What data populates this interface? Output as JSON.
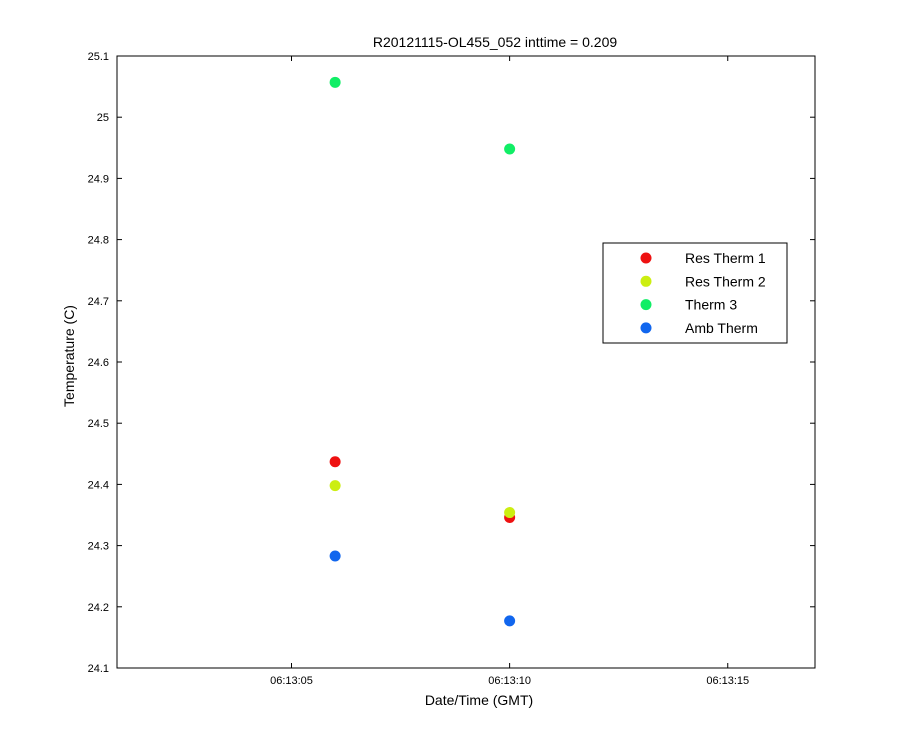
{
  "chart_data": {
    "type": "scatter",
    "title": "R20121115-OL455_052 inttime = 0.209",
    "xlabel": "Date/Time (GMT)",
    "ylabel": "Temperature (C)",
    "x_axis": {
      "kind": "time",
      "range": [
        "06:13:01",
        "06:13:17"
      ],
      "ticks": [
        "06:13:05",
        "06:13:10",
        "06:13:15"
      ]
    },
    "y_axis": {
      "range": [
        24.1,
        25.1
      ],
      "ticks": [
        "24.1",
        "24.2",
        "24.3",
        "24.4",
        "24.5",
        "24.6",
        "24.7",
        "24.8",
        "24.9",
        "25",
        "25.1"
      ]
    },
    "grid": false,
    "legend_position": "right",
    "series": [
      {
        "name": "Res Therm 1",
        "color": "#ee1111",
        "points": [
          {
            "x": "06:13:06",
            "y": 24.437
          },
          {
            "x": "06:13:10",
            "y": 24.346
          }
        ]
      },
      {
        "name": "Res Therm 2",
        "color": "#ccee11",
        "points": [
          {
            "x": "06:13:06",
            "y": 24.398
          },
          {
            "x": "06:13:10",
            "y": 24.354
          }
        ]
      },
      {
        "name": "Therm 3",
        "color": "#11ee66",
        "points": [
          {
            "x": "06:13:06",
            "y": 25.057
          },
          {
            "x": "06:13:10",
            "y": 24.948
          }
        ]
      },
      {
        "name": "Amb Therm",
        "color": "#1166ee",
        "points": [
          {
            "x": "06:13:06",
            "y": 24.283
          },
          {
            "x": "06:13:10",
            "y": 24.177
          }
        ]
      }
    ]
  }
}
